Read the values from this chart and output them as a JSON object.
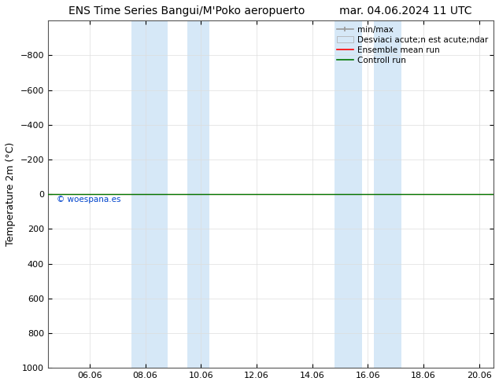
{
  "title_left": "ENS Time Series Bangui/M'Poko aeropuerto",
  "title_right": "mar. 04.06.2024 11 UTC",
  "ylabel": "Temperature 2m (°C)",
  "watermark": "© woespana.es",
  "xlim_left": 4.5,
  "xlim_right": 20.5,
  "ylim_top": -1000,
  "ylim_bottom": 1000,
  "yticks": [
    -800,
    -600,
    -400,
    -200,
    0,
    200,
    400,
    600,
    800,
    1000
  ],
  "xtick_positions": [
    6.0,
    8.0,
    10.0,
    12.0,
    14.0,
    16.0,
    18.0,
    20.0
  ],
  "xtick_labels": [
    "06.06",
    "08.06",
    "10.06",
    "12.06",
    "14.06",
    "16.06",
    "18.06",
    "20.06"
  ],
  "shaded_bands": [
    [
      7.5,
      8.8
    ],
    [
      9.5,
      10.3
    ],
    [
      14.8,
      15.8
    ],
    [
      16.2,
      17.2
    ]
  ],
  "band_color": "#d6e8f7",
  "horizontal_line_y": 0,
  "ensemble_mean_color": "#ff0000",
  "control_run_color": "#007700",
  "minmax_color": "#999999",
  "std_dev_color": "#cccccc",
  "legend_label_minmax": "min/max",
  "legend_label_std": "Desviaci acute;n est acute;ndar",
  "legend_label_mean": "Ensemble mean run",
  "legend_label_ctrl": "Controll run",
  "bg_color": "#ffffff",
  "title_fontsize": 10,
  "tick_fontsize": 8,
  "label_fontsize": 9,
  "legend_fontsize": 7.5
}
